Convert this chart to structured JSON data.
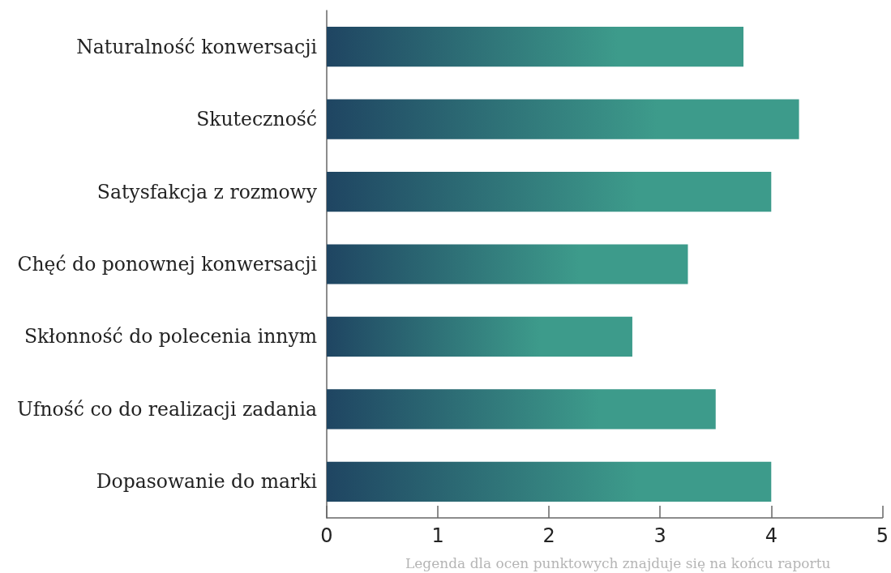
{
  "chart_data": {
    "type": "bar",
    "orientation": "horizontal",
    "categories": [
      "Naturalność konwersacji",
      "Skuteczność",
      "Satysfakcja z rozmowy",
      "Chęć do ponownej konwersacji",
      "Skłonność do polecenia innym",
      "Ufność co do realizacji zadania",
      "Dopasowanie do marki"
    ],
    "series": [
      {
        "color": "#3d9b8b",
        "values": [
          3.75,
          4.25,
          4.0,
          3.25,
          2.75,
          3.5,
          4.0
        ]
      }
    ],
    "xlim": [
      0,
      5
    ],
    "xticks": [
      0,
      1,
      2,
      3,
      4,
      5
    ],
    "grid": false,
    "annotations": [
      "Legenda dla ocen punktowych znajduje się na końcu raportu"
    ]
  }
}
